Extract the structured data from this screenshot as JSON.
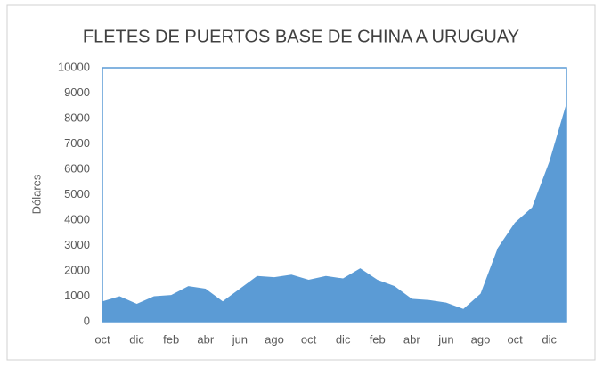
{
  "chart_data": {
    "type": "area",
    "title": "FLETES DE PUERTOS BASE DE CHINA A URUGUAY",
    "y_label": "Dólares",
    "categories": [
      "oct",
      null,
      "dic",
      null,
      "feb",
      null,
      "abr",
      null,
      "jun",
      null,
      "ago",
      null,
      "oct",
      null,
      "dic",
      null,
      "feb",
      null,
      "abr",
      null,
      "jun",
      null,
      "ago",
      null,
      "oct",
      null,
      "dic",
      null
    ],
    "values": [
      800,
      1000,
      700,
      1000,
      1050,
      1400,
      1300,
      800,
      1300,
      1800,
      1750,
      1850,
      1650,
      1800,
      1700,
      2100,
      1650,
      1400,
      900,
      850,
      750,
      500,
      1100,
      2900,
      3900,
      4500,
      6300,
      8600
    ],
    "color": "#5b9bd5",
    "ylim": [
      0,
      10000
    ],
    "yticks": [
      0,
      1000,
      2000,
      3000,
      4000,
      5000,
      6000,
      7000,
      8000,
      9000,
      10000
    ],
    "grid": false
  }
}
